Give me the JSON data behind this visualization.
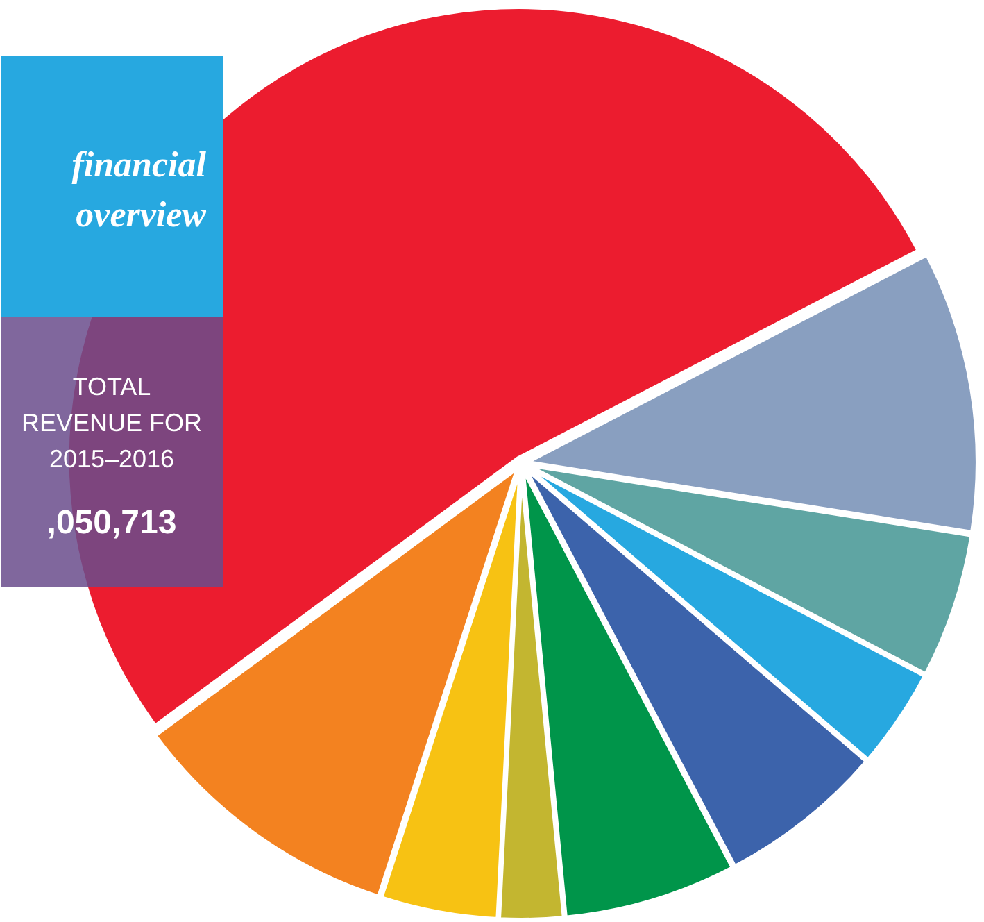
{
  "chart_data": {
    "type": "pie",
    "title": "financial overview",
    "annotations": [
      "TOTAL REVENUE FOR 2015–2016",
      ",050,713"
    ],
    "categories": [
      null,
      null,
      null,
      null,
      null,
      null,
      null,
      null,
      null
    ],
    "values": [
      52.5,
      9.9,
      4.2,
      2.3,
      6.2,
      6.0,
      3.6,
      5.2,
      10.1
    ],
    "colors": [
      "#ec1c2f",
      "#f38220",
      "#f7c213",
      "#c3b630",
      "#00954a",
      "#3c63ab",
      "#27a8e0",
      "#5fa5a3",
      "#899fc0"
    ]
  }
}
